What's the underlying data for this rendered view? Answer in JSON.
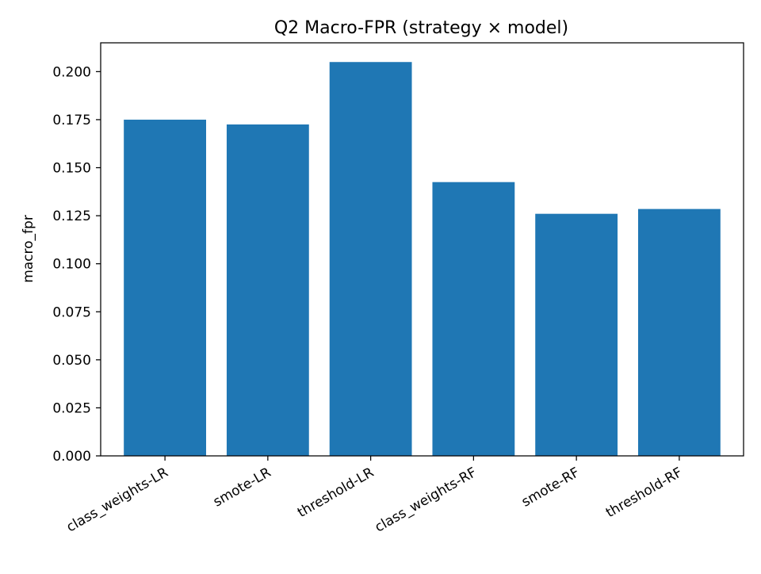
{
  "chart_data": {
    "type": "bar",
    "title": "Q2 Macro-FPR (strategy × model)",
    "xlabel": "",
    "ylabel": "macro_fpr",
    "categories": [
      "class_weights-LR",
      "smote-LR",
      "threshold-LR",
      "class_weights-RF",
      "smote-RF",
      "threshold-RF"
    ],
    "values": [
      0.175,
      0.1725,
      0.205,
      0.1425,
      0.126,
      0.1285
    ],
    "ylim": [
      0,
      0.215
    ],
    "yticks": [
      0.0,
      0.025,
      0.05,
      0.075,
      0.1,
      0.125,
      0.15,
      0.175,
      0.2
    ],
    "ytick_labels": [
      "0.000",
      "0.025",
      "0.050",
      "0.075",
      "0.100",
      "0.125",
      "0.150",
      "0.175",
      "0.200"
    ],
    "bar_color": "#1f77b4",
    "grid": false,
    "legend": "none"
  }
}
